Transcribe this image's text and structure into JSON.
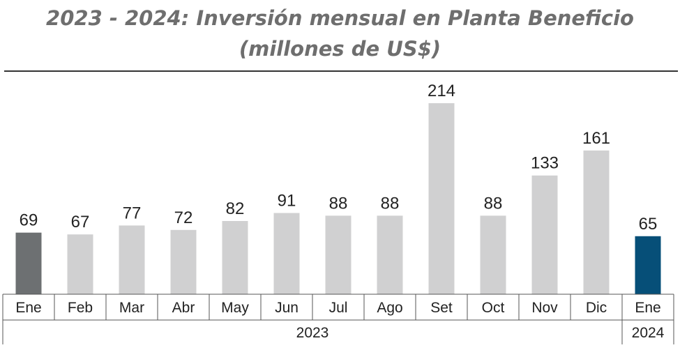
{
  "chart_data": {
    "type": "bar",
    "title": "2023 - 2024: Inversión mensual en Planta Beneficio",
    "subtitle": "(millones de US$)",
    "categories": [
      "Ene",
      "Feb",
      "Mar",
      "Abr",
      "May",
      "Jun",
      "Jul",
      "Ago",
      "Set",
      "Oct",
      "Nov",
      "Dic",
      "Ene"
    ],
    "values": [
      69,
      67,
      77,
      72,
      82,
      91,
      88,
      88,
      214,
      88,
      133,
      161,
      65
    ],
    "groups": [
      {
        "label": "2023",
        "span": [
          0,
          11
        ]
      },
      {
        "label": "2024",
        "span": [
          12,
          12
        ]
      }
    ],
    "colors": {
      "first": "#6d7072",
      "default": "#d0d0d1",
      "last": "#064f78",
      "axis": "#555555",
      "title": "#6e6e6e",
      "text": "#222222"
    },
    "xlabel": "",
    "ylabel": "",
    "ylim": [
      0,
      230
    ],
    "grid": false,
    "legend": "none"
  }
}
